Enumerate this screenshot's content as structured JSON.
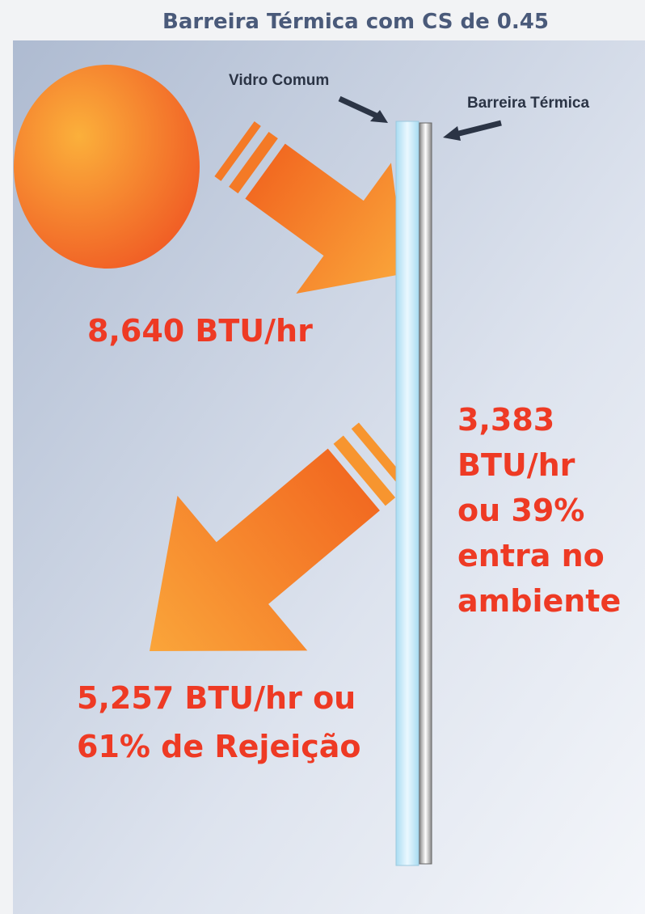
{
  "header": {
    "title": "Barreira Térmica com CS de 0.45"
  },
  "labels": {
    "glass": "Vidro Comum",
    "barrier": "Barreira Térmica"
  },
  "incoming": "8,640 BTU/hr",
  "transmitted": [
    "3,383",
    "BTU/hr",
    "ou 39%",
    "entra no",
    "ambiente"
  ],
  "rejected": [
    "5,257 BTU/hr ou",
    "61% de Rejeição"
  ]
}
